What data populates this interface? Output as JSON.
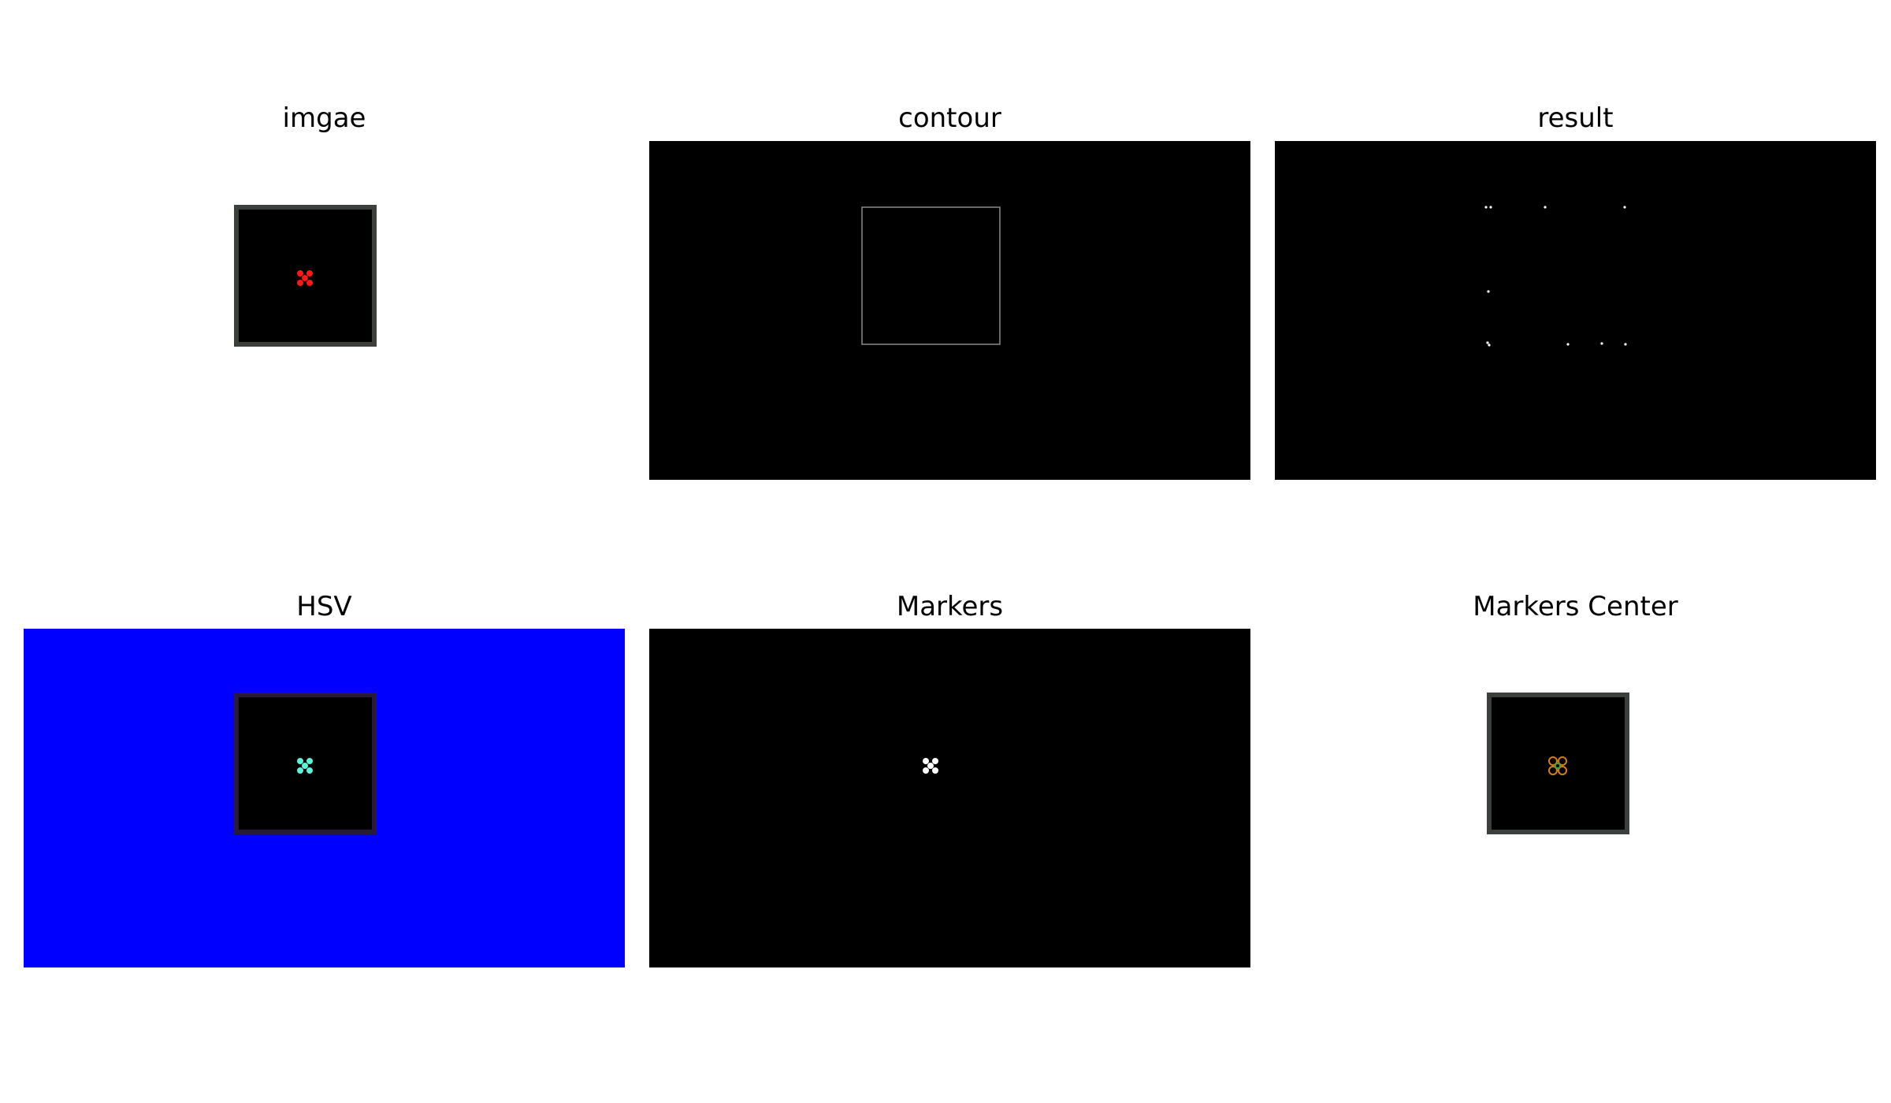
{
  "panels": [
    {
      "id": "imgae",
      "title": "imgae"
    },
    {
      "id": "contour",
      "title": "contour"
    },
    {
      "id": "result",
      "title": "result"
    },
    {
      "id": "hsv",
      "title": "HSV"
    },
    {
      "id": "markers",
      "title": "Markers"
    },
    {
      "id": "markers-center",
      "title": "Markers Center"
    }
  ],
  "colors": {
    "marker_red": "#ff1a1a",
    "hsv_background": "#0000ff",
    "hsv_marker": "#5ff0d8",
    "marker_white": "#ffffff",
    "frame_gray": "#3c403c",
    "center_marker_orange": "#d08020",
    "center_marker_green": "#40a040"
  }
}
